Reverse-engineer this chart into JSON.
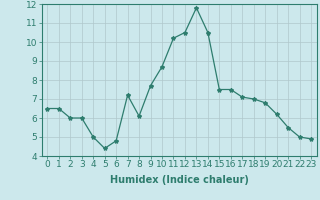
{
  "x": [
    0,
    1,
    2,
    3,
    4,
    5,
    6,
    7,
    8,
    9,
    10,
    11,
    12,
    13,
    14,
    15,
    16,
    17,
    18,
    19,
    20,
    21,
    22,
    23
  ],
  "y": [
    6.5,
    6.5,
    6.0,
    6.0,
    5.0,
    4.4,
    4.8,
    7.2,
    6.1,
    7.7,
    8.7,
    10.2,
    10.5,
    11.8,
    10.5,
    7.5,
    7.5,
    7.1,
    7.0,
    6.8,
    6.2,
    5.5,
    5.0,
    4.9
  ],
  "line_color": "#2e7d6e",
  "marker": "*",
  "marker_size": 3,
  "bg_color": "#cce8ec",
  "grid_color": "#b0c8cc",
  "xlabel": "Humidex (Indice chaleur)",
  "ylim": [
    4,
    12
  ],
  "xlim": [
    -0.5,
    23.5
  ],
  "yticks": [
    4,
    5,
    6,
    7,
    8,
    9,
    10,
    11,
    12
  ],
  "xticks": [
    0,
    1,
    2,
    3,
    4,
    5,
    6,
    7,
    8,
    9,
    10,
    11,
    12,
    13,
    14,
    15,
    16,
    17,
    18,
    19,
    20,
    21,
    22,
    23
  ],
  "xlabel_fontsize": 7,
  "tick_fontsize": 6.5
}
